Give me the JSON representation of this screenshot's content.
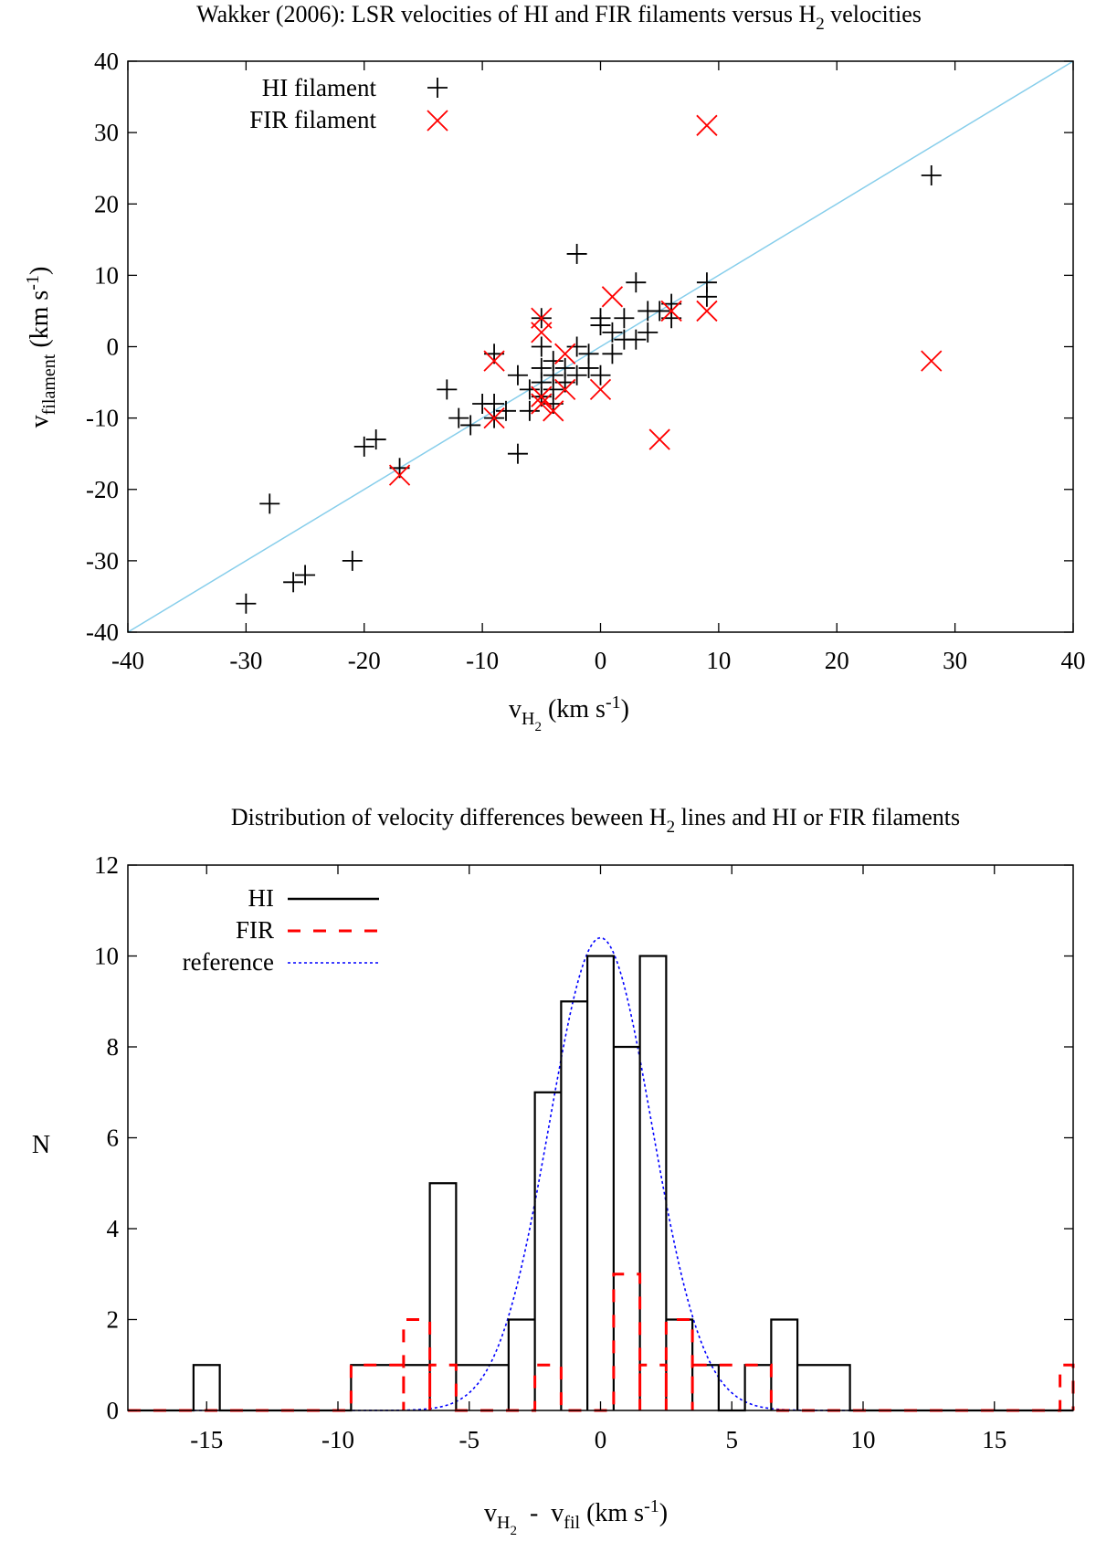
{
  "chart_data": [
    {
      "type": "scatter",
      "title": "Wakker (2006): LSR velocities of HI and FIR filaments versus H",
      "title_sub": "2",
      "title_suffix": " velocities",
      "xlabel": {
        "main": "v",
        "sub": "H",
        "subsub": "2",
        "rest": " (km s",
        "sup": "-1",
        "end": ")"
      },
      "ylabel": {
        "main": "v",
        "sub": "filament",
        "rest": " (km s",
        "sup": "-1",
        "end": ")"
      },
      "xlim": [
        -40,
        40
      ],
      "ylim": [
        -40,
        40
      ],
      "xticks": [
        -40,
        -30,
        -20,
        -10,
        0,
        10,
        20,
        30,
        40
      ],
      "yticks": [
        -40,
        -30,
        -20,
        -10,
        0,
        10,
        20,
        30,
        40
      ],
      "reference_line": {
        "from": [
          -40,
          -40
        ],
        "to": [
          40,
          40
        ],
        "color": "#87ceeb"
      },
      "legend_position": "top-left",
      "series": [
        {
          "name": "HI filament",
          "marker": "plus",
          "color": "#000000",
          "points": [
            [
              -30,
              -36
            ],
            [
              -28,
              -22
            ],
            [
              -26,
              -33
            ],
            [
              -25,
              -32
            ],
            [
              -21,
              -30
            ],
            [
              -20,
              -14
            ],
            [
              -19,
              -13
            ],
            [
              -17,
              -17
            ],
            [
              -13,
              -6
            ],
            [
              -12,
              -10
            ],
            [
              -11,
              -11
            ],
            [
              -10,
              -8
            ],
            [
              -9,
              -1
            ],
            [
              -9,
              -8
            ],
            [
              -9,
              -10
            ],
            [
              -8,
              -9
            ],
            [
              -7,
              -15
            ],
            [
              -7,
              -4
            ],
            [
              -6,
              -9
            ],
            [
              -6,
              -6
            ],
            [
              -5,
              4
            ],
            [
              -5,
              0
            ],
            [
              -5,
              -3
            ],
            [
              -5,
              -5
            ],
            [
              -5,
              -7
            ],
            [
              -4,
              -2
            ],
            [
              -4,
              -4
            ],
            [
              -4,
              -6
            ],
            [
              -4,
              -8
            ],
            [
              -3,
              -3
            ],
            [
              -3,
              -5
            ],
            [
              -2,
              13
            ],
            [
              -2,
              0
            ],
            [
              -2,
              -4
            ],
            [
              -1,
              -1
            ],
            [
              -1,
              -3
            ],
            [
              0,
              4
            ],
            [
              0,
              3
            ],
            [
              0,
              -4
            ],
            [
              1,
              2
            ],
            [
              1,
              -1
            ],
            [
              2,
              4
            ],
            [
              2,
              1
            ],
            [
              3,
              9
            ],
            [
              3,
              1
            ],
            [
              4,
              5
            ],
            [
              4,
              2
            ],
            [
              5,
              5
            ],
            [
              6,
              6
            ],
            [
              6,
              4
            ],
            [
              9,
              9
            ],
            [
              9,
              7
            ],
            [
              28,
              24
            ]
          ]
        },
        {
          "name": "FIR filament",
          "marker": "cross",
          "color": "#ff0000",
          "points": [
            [
              -17,
              -18
            ],
            [
              -9,
              -2
            ],
            [
              -9,
              -10
            ],
            [
              -5,
              4
            ],
            [
              -5,
              2
            ],
            [
              -5,
              -7
            ],
            [
              -5,
              -8
            ],
            [
              -4,
              -9
            ],
            [
              -3,
              -1
            ],
            [
              -3,
              -6
            ],
            [
              0,
              -6
            ],
            [
              1,
              7
            ],
            [
              5,
              -13
            ],
            [
              6,
              5
            ],
            [
              9,
              31
            ],
            [
              9,
              5
            ],
            [
              28,
              -2
            ]
          ]
        }
      ]
    },
    {
      "type": "histogram",
      "title": "Distribution of velocity differences beween H",
      "title_sub": "2",
      "title_suffix": " lines and HI or FIR filaments",
      "xlabel": {
        "main": "v",
        "sub": "H",
        "subsub": "2",
        "mid": "  -  v",
        "sub2": "fil",
        "rest": " (km s",
        "sup": "-1",
        "end": ")"
      },
      "ylabel": "N",
      "xlim": [
        -18,
        18
      ],
      "ylim": [
        0,
        12
      ],
      "xticks": [
        -15,
        -10,
        -5,
        0,
        5,
        10,
        15
      ],
      "yticks": [
        0,
        2,
        4,
        6,
        8,
        10,
        12
      ],
      "legend_position": "top-left",
      "series": [
        {
          "name": "HI",
          "style": "solid",
          "color": "#000000",
          "bins": [
            [
              -15.5,
              -14.5,
              1
            ],
            [
              -9.5,
              -6.5,
              1
            ],
            [
              -6.5,
              -5.5,
              5
            ],
            [
              -5.5,
              -3.5,
              1
            ],
            [
              -3.5,
              -2.5,
              2
            ],
            [
              -2.5,
              -1.5,
              7
            ],
            [
              -1.5,
              -0.5,
              9
            ],
            [
              -0.5,
              0.5,
              10
            ],
            [
              0.5,
              1.5,
              8
            ],
            [
              1.5,
              2.5,
              10
            ],
            [
              2.5,
              3.5,
              2
            ],
            [
              3.5,
              4.5,
              1
            ],
            [
              5.5,
              6.5,
              1
            ],
            [
              6.5,
              7.5,
              2
            ],
            [
              7.5,
              9.5,
              1
            ]
          ]
        },
        {
          "name": "FIR",
          "style": "dashed",
          "color": "#ff0000",
          "bins": [
            [
              -9.5,
              -7.5,
              1
            ],
            [
              -7.5,
              -6.5,
              2
            ],
            [
              -6.5,
              -5.5,
              1
            ],
            [
              -2.5,
              -1.5,
              1
            ],
            [
              0.5,
              1.5,
              3
            ],
            [
              1.5,
              2.5,
              1
            ],
            [
              2.5,
              3.5,
              2
            ],
            [
              3.5,
              6.5,
              1
            ],
            [
              17.5,
              18,
              1
            ]
          ]
        },
        {
          "name": "reference",
          "style": "dotted",
          "color": "#0000ff",
          "gaussian": {
            "amplitude": 10.4,
            "mean": 0,
            "sigma": 1.95
          }
        }
      ]
    }
  ]
}
